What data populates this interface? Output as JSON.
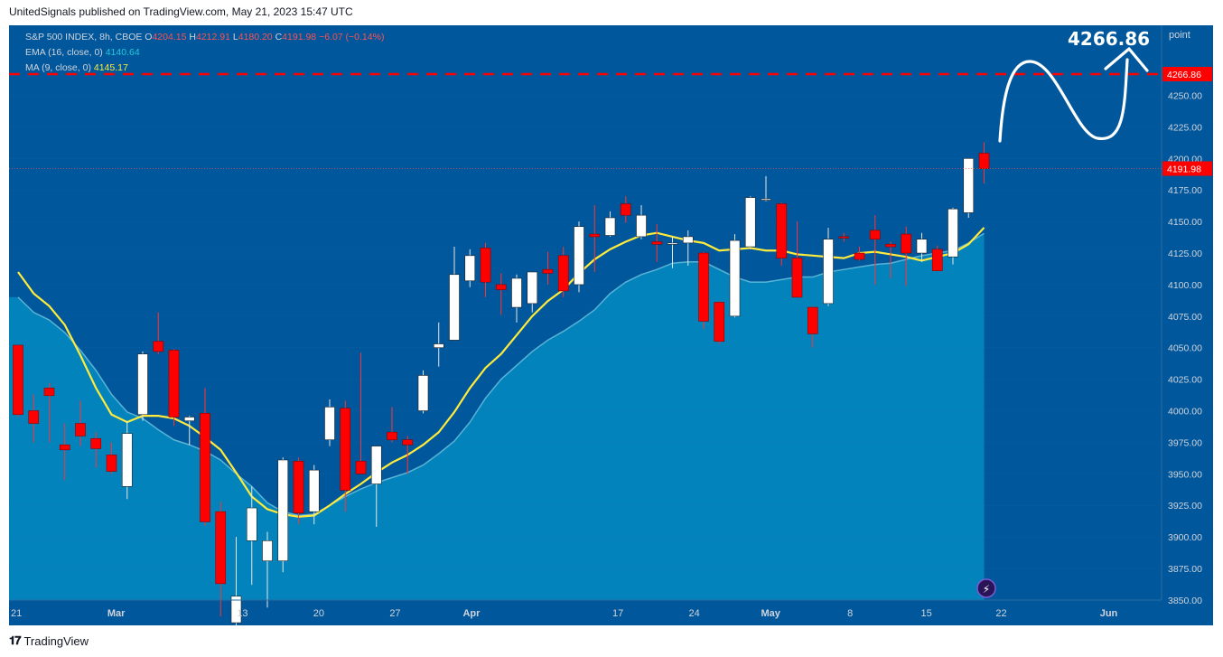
{
  "header": {
    "published_line": "UnitedSignals published on TradingView.com, May 21, 2023 15:47 UTC"
  },
  "legend": {
    "symbol": "S&P 500 INDEX, 8h, CBOE",
    "open_label": "O",
    "open": "4204.15",
    "high_label": "H",
    "high": "4212.91",
    "low_label": "L",
    "low": "4180.20",
    "close_label": "C",
    "close": "4191.98",
    "change": "−6.07 (−0.14%)",
    "ema_label": "EMA (16, close, 0)",
    "ema_value": "4140.64",
    "ma_label": "MA (9, close, 0)",
    "ma_value": "4145.17"
  },
  "footer": {
    "brand": "TradingView"
  },
  "colors": {
    "background": "#01579b",
    "area": "#0386bd",
    "up": "#ffffff",
    "down": "#ff0000",
    "ma": "#ffeb3b",
    "ema": "#26c6da",
    "target_line": "#ff0000"
  },
  "chart_data": {
    "type": "candlestick",
    "title": "S&P 500 INDEX, 8h, CBOE",
    "price_axis_label": "point",
    "ylim": [
      3828,
      4285
    ],
    "y_ticks": [
      3850,
      3875,
      3900,
      3925,
      3950,
      3975,
      4000,
      4025,
      4050,
      4075,
      4100,
      4125,
      4150,
      4175,
      4200,
      4225,
      4250
    ],
    "x_ticks": [
      {
        "label": "21",
        "i": 0
      },
      {
        "label": "Mar",
        "i": 6.3
      },
      {
        "label": "13",
        "i": 14.4
      },
      {
        "label": "20",
        "i": 19.3
      },
      {
        "label": "27",
        "i": 24.2
      },
      {
        "label": "Apr",
        "i": 29.1
      },
      {
        "label": "17",
        "i": 38.5
      },
      {
        "label": "24",
        "i": 43.4
      },
      {
        "label": "May",
        "i": 48.3
      },
      {
        "label": "8",
        "i": 53.4
      },
      {
        "label": "15",
        "i": 58.3
      },
      {
        "label": "22",
        "i": 63.1
      },
      {
        "label": "Jun",
        "i": 70.0
      }
    ],
    "candles": [
      {
        "o": 4052,
        "h": 4052,
        "l": 3995,
        "c": 3997
      },
      {
        "o": 4000,
        "h": 4013,
        "l": 3975,
        "c": 3990
      },
      {
        "o": 4018,
        "h": 4022,
        "l": 3975,
        "c": 4012
      },
      {
        "o": 3973,
        "h": 3990,
        "l": 3945,
        "c": 3969
      },
      {
        "o": 3990,
        "h": 4008,
        "l": 3972,
        "c": 3980
      },
      {
        "o": 3978,
        "h": 3983,
        "l": 3955,
        "c": 3970
      },
      {
        "o": 3965,
        "h": 3975,
        "l": 3950,
        "c": 3952
      },
      {
        "o": 3940,
        "h": 3992,
        "l": 3930,
        "c": 3982
      },
      {
        "o": 3997,
        "h": 4047,
        "l": 3992,
        "c": 4045
      },
      {
        "o": 4055,
        "h": 4078,
        "l": 4045,
        "c": 4047
      },
      {
        "o": 4048,
        "h": 4049,
        "l": 3988,
        "c": 3995
      },
      {
        "o": 3992,
        "h": 3996,
        "l": 3973,
        "c": 3995
      },
      {
        "o": 3998,
        "h": 4018,
        "l": 3909,
        "c": 3912
      },
      {
        "o": 3920,
        "h": 3928,
        "l": 3837,
        "c": 3863
      },
      {
        "o": 3832,
        "h": 3900,
        "l": 3830,
        "c": 3853
      },
      {
        "o": 3897,
        "h": 3940,
        "l": 3862,
        "c": 3923
      },
      {
        "o": 3881,
        "h": 3904,
        "l": 3844,
        "c": 3897
      },
      {
        "o": 3881,
        "h": 3963,
        "l": 3872,
        "c": 3961
      },
      {
        "o": 3960,
        "h": 3963,
        "l": 3910,
        "c": 3919
      },
      {
        "o": 3920,
        "h": 3957,
        "l": 3910,
        "c": 3953
      },
      {
        "o": 3977,
        "h": 4009,
        "l": 3972,
        "c": 4003
      },
      {
        "o": 4002,
        "h": 4008,
        "l": 3920,
        "c": 3937
      },
      {
        "o": 3960,
        "h": 4046,
        "l": 3950,
        "c": 3950
      },
      {
        "o": 3942,
        "h": 3972,
        "l": 3908,
        "c": 3972
      },
      {
        "o": 3983,
        "h": 4003,
        "l": 3975,
        "c": 3977
      },
      {
        "o": 3977,
        "h": 3980,
        "l": 3950,
        "c": 3973
      },
      {
        "o": 4000,
        "h": 4032,
        "l": 3998,
        "c": 4028
      },
      {
        "o": 4050,
        "h": 4070,
        "l": 4035,
        "c": 4053
      },
      {
        "o": 4056,
        "h": 4130,
        "l": 4056,
        "c": 4108
      },
      {
        "o": 4103,
        "h": 4128,
        "l": 4098,
        "c": 4123
      },
      {
        "o": 4129,
        "h": 4133,
        "l": 4090,
        "c": 4102
      },
      {
        "o": 4100,
        "h": 4109,
        "l": 4076,
        "c": 4096
      },
      {
        "o": 4082,
        "h": 4108,
        "l": 4070,
        "c": 4105
      },
      {
        "o": 4085,
        "h": 4110,
        "l": 4078,
        "c": 4110
      },
      {
        "o": 4112,
        "h": 4126,
        "l": 4100,
        "c": 4109
      },
      {
        "o": 4123,
        "h": 4130,
        "l": 4090,
        "c": 4095
      },
      {
        "o": 4100,
        "h": 4150,
        "l": 4094,
        "c": 4146
      },
      {
        "o": 4140,
        "h": 4163,
        "l": 4110,
        "c": 4138
      },
      {
        "o": 4139,
        "h": 4158,
        "l": 4138,
        "c": 4153
      },
      {
        "o": 4164,
        "h": 4170,
        "l": 4149,
        "c": 4155
      },
      {
        "o": 4138,
        "h": 4163,
        "l": 4136,
        "c": 4155
      },
      {
        "o": 4134,
        "h": 4148,
        "l": 4118,
        "c": 4132
      },
      {
        "o": 4132,
        "h": 4138,
        "l": 4113,
        "c": 4133
      },
      {
        "o": 4133,
        "h": 4143,
        "l": 4115,
        "c": 4138
      },
      {
        "o": 4125,
        "h": 4126,
        "l": 4065,
        "c": 4071
      },
      {
        "o": 4086,
        "h": 4087,
        "l": 4053,
        "c": 4055
      },
      {
        "o": 4075,
        "h": 4140,
        "l": 4074,
        "c": 4135
      },
      {
        "o": 4130,
        "h": 4170,
        "l": 4128,
        "c": 4169
      },
      {
        "o": 4167,
        "h": 4186,
        "l": 4166,
        "c": 4168
      },
      {
        "o": 4164,
        "h": 4165,
        "l": 4115,
        "c": 4121
      },
      {
        "o": 4121,
        "h": 4150,
        "l": 4090,
        "c": 4090
      },
      {
        "o": 4082,
        "h": 4083,
        "l": 4050,
        "c": 4061
      },
      {
        "o": 4085,
        "h": 4145,
        "l": 4083,
        "c": 4136
      },
      {
        "o": 4138,
        "h": 4141,
        "l": 4134,
        "c": 4137
      },
      {
        "o": 4125,
        "h": 4130,
        "l": 4119,
        "c": 4120
      },
      {
        "o": 4143,
        "h": 4155,
        "l": 4100,
        "c": 4136
      },
      {
        "o": 4132,
        "h": 4134,
        "l": 4105,
        "c": 4130
      },
      {
        "o": 4140,
        "h": 4146,
        "l": 4099,
        "c": 4125
      },
      {
        "o": 4125,
        "h": 4141,
        "l": 4118,
        "c": 4136
      },
      {
        "o": 4128,
        "h": 4131,
        "l": 4111,
        "c": 4111
      },
      {
        "o": 4122,
        "h": 4161,
        "l": 4116,
        "c": 4160
      },
      {
        "o": 4157,
        "h": 4200,
        "l": 4153,
        "c": 4200
      },
      {
        "o": 4204.15,
        "h": 4212.91,
        "l": 4180.2,
        "c": 4191.98
      }
    ],
    "ma_9": [
      4110,
      4093,
      4083,
      4068,
      4044,
      4018,
      3997,
      3991,
      3996,
      3996,
      3994,
      3988,
      3979,
      3969,
      3951,
      3932,
      3922,
      3918,
      3916,
      3917,
      3925,
      3934,
      3942,
      3951,
      3959,
      3965,
      3973,
      3983,
      3999,
      4018,
      4034,
      4045,
      4060,
      4075,
      4087,
      4096,
      4109,
      4120,
      4128,
      4134,
      4139,
      4141,
      4138,
      4135,
      4133,
      4127,
      4128,
      4129,
      4127,
      4127,
      4124,
      4123,
      4122,
      4121,
      4125,
      4126,
      4124,
      4122,
      4119,
      4122,
      4125,
      4132,
      4145.17
    ],
    "ema_16": [
      4090,
      4078,
      4072,
      4062,
      4048,
      4032,
      4013,
      3999,
      3994,
      3985,
      3977,
      3973,
      3968,
      3961,
      3950,
      3940,
      3927,
      3920,
      3917,
      3918,
      3925,
      3932,
      3938,
      3943,
      3947,
      3951,
      3957,
      3966,
      3976,
      3991,
      4010,
      4025,
      4036,
      4047,
      4056,
      4063,
      4071,
      4080,
      4093,
      4102,
      4108,
      4112,
      4117,
      4118,
      4118,
      4112,
      4106,
      4102,
      4102,
      4104,
      4106,
      4106,
      4110,
      4112,
      4114,
      4116,
      4117,
      4120,
      4123,
      4125,
      4127,
      4133,
      4140.64
    ],
    "last_price": "4191.98",
    "target_price": "4266.86",
    "target_annotation": "4266.86"
  }
}
